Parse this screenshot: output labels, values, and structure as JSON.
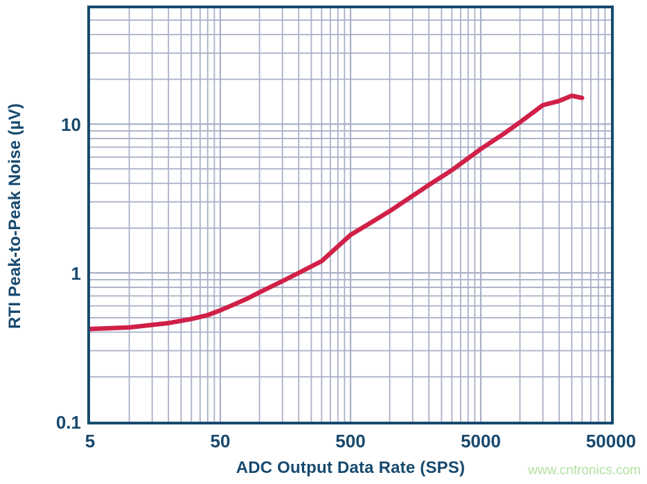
{
  "colors": {
    "axis_and_text": "#17496e",
    "grid": "#a9b0c7",
    "curve": "#d02048",
    "watermark": "#b3e0a2",
    "background": "#ffffff"
  },
  "watermark": {
    "text": "www.cntronics.com"
  },
  "chart_data": {
    "type": "line",
    "title": "",
    "xlabel": "ADC Output Data Rate (SPS)",
    "ylabel": "RTI Peak-to-Peak Noise (µV)",
    "x_scale": "log",
    "y_scale": "log",
    "xlim": [
      5,
      50000
    ],
    "ylim": [
      0.1,
      60
    ],
    "x_ticks": [
      5,
      50,
      500,
      5000,
      50000
    ],
    "x_tick_labels": [
      "5",
      "50",
      "500",
      "5000",
      "50000"
    ],
    "y_ticks": [
      0.1,
      1,
      10
    ],
    "y_tick_labels": [
      "0.1",
      "1",
      "10"
    ],
    "x_major_gridlines": [
      50,
      500,
      5000
    ],
    "y_major_gridlines": [
      1,
      10
    ],
    "grid": "on, log minor gridlines both axes",
    "legend": "none",
    "series": [
      {
        "name": "RTI peak-to-peak noise",
        "color": "#d02048",
        "points": [
          [
            5,
            0.42
          ],
          [
            10,
            0.43
          ],
          [
            20,
            0.46
          ],
          [
            30,
            0.49
          ],
          [
            40,
            0.52
          ],
          [
            50,
            0.56
          ],
          [
            60,
            0.6
          ],
          [
            80,
            0.67
          ],
          [
            100,
            0.74
          ],
          [
            150,
            0.88
          ],
          [
            200,
            1.0
          ],
          [
            300,
            1.2
          ],
          [
            500,
            1.8
          ],
          [
            700,
            2.15
          ],
          [
            1000,
            2.6
          ],
          [
            2000,
            3.9
          ],
          [
            3000,
            4.9
          ],
          [
            5000,
            6.8
          ],
          [
            7500,
            8.6
          ],
          [
            10000,
            10.3
          ],
          [
            15000,
            13.4
          ],
          [
            20000,
            14.3
          ],
          [
            25000,
            15.5
          ],
          [
            30000,
            15.0
          ]
        ]
      }
    ]
  }
}
